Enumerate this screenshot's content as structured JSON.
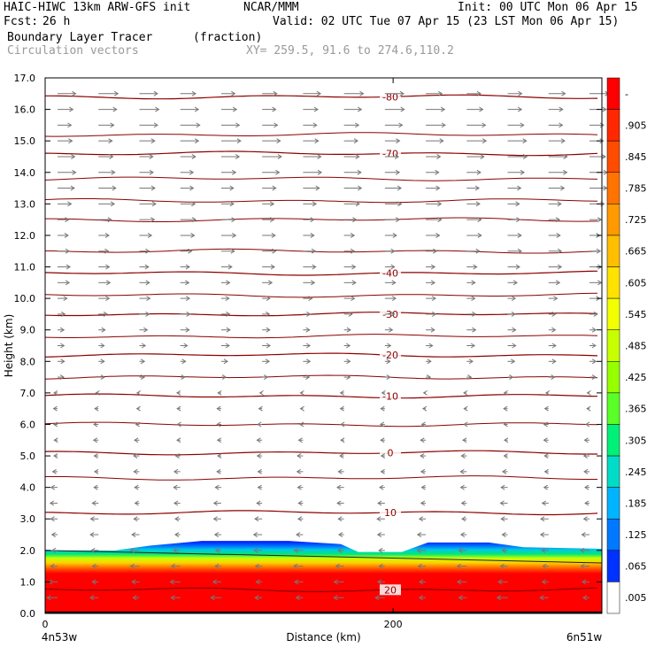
{
  "header": {
    "title": "HAIC-HIWC 13km ARW-GFS init",
    "org": "NCAR/MMM",
    "init": "Init: 00 UTC Mon 06 Apr 15",
    "fcst_label": "Fcst:",
    "fcst_value": "26 h",
    "valid": "Valid: 02 UTC Tue 07 Apr 15 (23 LST Mon 06 Apr 15)",
    "field": "Boundary Layer Tracer",
    "field_units": "(fraction)",
    "vectors": "Circulation vectors",
    "xy": "XY= 259.5, 91.6 to 274.6,110.2"
  },
  "chart_data": {
    "type": "heatmap",
    "xlabel": "Distance (km)",
    "ylabel": "Height (km)",
    "x_ticks": [
      "0",
      "200"
    ],
    "x_end_labels": [
      "4n53w",
      "6n51w"
    ],
    "y_ticks": [
      "0.0",
      "1.0",
      "2.0",
      "3.0",
      "4.0",
      "5.0",
      "6.0",
      "7.0",
      "8.0",
      "9.0",
      "10.0",
      "11.0",
      "12.0",
      "13.0",
      "14.0",
      "15.0",
      "16.0",
      "17.0"
    ],
    "ylim": [
      0,
      17
    ],
    "xlim": [
      0,
      320
    ],
    "tracer_top_km": [
      {
        "x": 0,
        "top": 2.0
      },
      {
        "x": 40,
        "top": 2.0
      },
      {
        "x": 60,
        "top": 2.15
      },
      {
        "x": 90,
        "top": 2.3
      },
      {
        "x": 140,
        "top": 2.3
      },
      {
        "x": 170,
        "top": 2.2
      },
      {
        "x": 180,
        "top": 1.95
      },
      {
        "x": 205,
        "top": 1.95
      },
      {
        "x": 220,
        "top": 2.25
      },
      {
        "x": 255,
        "top": 2.25
      },
      {
        "x": 275,
        "top": 2.1
      },
      {
        "x": 320,
        "top": 2.05
      }
    ],
    "temperature_contours": [
      {
        "label": "-80",
        "height_km": 16.4
      },
      {
        "label": "-70",
        "height_km": 14.6
      },
      {
        "label": "-40",
        "height_km": 10.8
      },
      {
        "label": "-30",
        "height_km": 9.5
      },
      {
        "label": "-20",
        "height_km": 8.2
      },
      {
        "label": "-10",
        "height_km": 6.9
      },
      {
        "label": "0",
        "height_km": 5.1
      },
      {
        "label": "10",
        "height_km": 3.2
      },
      {
        "label": "20",
        "height_km": 0.75
      }
    ],
    "unlabeled_contour_heights_km": [
      15.2,
      13.8,
      13.1,
      12.5,
      11.5,
      10.1,
      8.8,
      7.5,
      6.0,
      4.3
    ],
    "colorbar": {
      "labels": [
        "-",
        ".905",
        ".845",
        ".785",
        ".725",
        ".665",
        ".605",
        ".545",
        ".485",
        ".425",
        ".365",
        ".305",
        ".245",
        ".185",
        ".125",
        ".065",
        ".005"
      ],
      "colors": [
        "#ff0000",
        "#ff2800",
        "#ff4c00",
        "#ff7400",
        "#ff9a00",
        "#ffbe00",
        "#ffe200",
        "#f2ff00",
        "#c8ff00",
        "#96ff00",
        "#5aff28",
        "#00f078",
        "#00dcc8",
        "#00b4ff",
        "#0078ff",
        "#0032ff",
        "#ffffff"
      ]
    },
    "wind_note": "westerly aloft, easterly below 7 km"
  }
}
